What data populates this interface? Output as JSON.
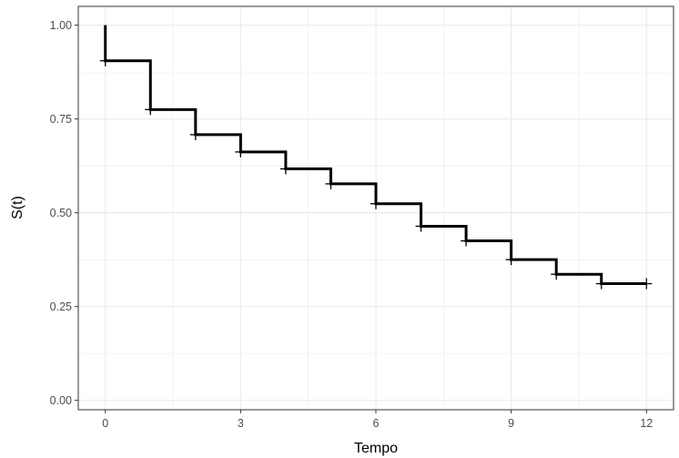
{
  "chart_data": {
    "type": "line",
    "subtype": "step",
    "title": "",
    "xlabel": "Tempo",
    "ylabel": "S(t)",
    "xlim": [
      -0.6,
      12.6
    ],
    "ylim": [
      -0.025,
      1.05
    ],
    "x_ticks": [
      0,
      3,
      6,
      9,
      12
    ],
    "x_tick_labels": [
      "0",
      "3",
      "6",
      "9",
      "12"
    ],
    "y_ticks": [
      0,
      0.25,
      0.5,
      0.75,
      1
    ],
    "y_tick_labels": [
      "0.00",
      "0.25",
      "0.50",
      "0.75",
      "1.00"
    ],
    "x_minor": [
      1.5,
      4.5,
      7.5,
      10.5
    ],
    "y_minor": [
      0.125,
      0.375,
      0.625,
      0.875
    ],
    "grid": true,
    "legend": "none",
    "line_color": "#000000",
    "grid_color": "#ebebeb",
    "series": [
      {
        "x": [
          0,
          1,
          2,
          3,
          4,
          5,
          6,
          7,
          8,
          9,
          10,
          11,
          12
        ],
        "y": [
          0.905,
          0.775,
          0.708,
          0.662,
          0.617,
          0.577,
          0.524,
          0.464,
          0.425,
          0.375,
          0.336,
          0.311,
          0.311
        ]
      }
    ],
    "censor_marks": {
      "x": [
        0,
        1,
        2,
        3,
        4,
        5,
        6,
        7,
        8,
        9,
        10,
        11,
        12
      ],
      "y": [
        0.905,
        0.775,
        0.708,
        0.662,
        0.617,
        0.577,
        0.524,
        0.464,
        0.425,
        0.375,
        0.336,
        0.311,
        0.311
      ]
    }
  }
}
